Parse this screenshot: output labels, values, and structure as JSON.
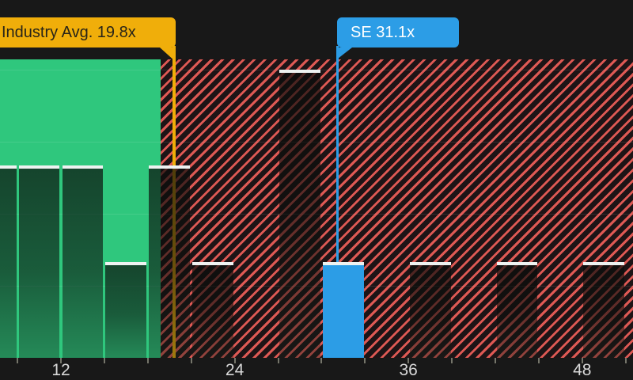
{
  "chart_data": {
    "type": "bar",
    "subtype": "histogram",
    "title": "",
    "xlabel": "",
    "ylabel": "",
    "x_range": [
      7.8,
      51.5
    ],
    "ylim": [
      0,
      3
    ],
    "bin_width": 3,
    "x_minor_ticks": [
      9,
      12,
      15,
      18,
      21,
      24,
      27,
      30,
      33,
      36,
      39,
      42,
      45,
      48,
      51
    ],
    "x_labeled_ticks": [
      12,
      24,
      36,
      48
    ],
    "x_tick_labels": [
      "12",
      "24",
      "36",
      "48"
    ],
    "grid": "horizontal-faint",
    "legend_position": "none",
    "bins": [
      {
        "x_start": 6,
        "x_end": 9,
        "count": 2,
        "clipped_left": true
      },
      {
        "x_start": 9,
        "x_end": 12,
        "count": 2
      },
      {
        "x_start": 12,
        "x_end": 15,
        "count": 2
      },
      {
        "x_start": 15,
        "x_end": 18,
        "count": 1
      },
      {
        "x_start": 18,
        "x_end": 21,
        "count": 2
      },
      {
        "x_start": 21,
        "x_end": 24,
        "count": 1
      },
      {
        "x_start": 24,
        "x_end": 27,
        "count": 0
      },
      {
        "x_start": 27,
        "x_end": 30,
        "count": 3
      },
      {
        "x_start": 30,
        "x_end": 33,
        "count": 1,
        "highlight": "company"
      },
      {
        "x_start": 33,
        "x_end": 36,
        "count": 0
      },
      {
        "x_start": 36,
        "x_end": 39,
        "count": 1
      },
      {
        "x_start": 39,
        "x_end": 42,
        "count": 0
      },
      {
        "x_start": 42,
        "x_end": 45,
        "count": 1
      },
      {
        "x_start": 45,
        "x_end": 48,
        "count": 0
      },
      {
        "x_start": 48,
        "x_end": 51,
        "count": 1
      }
    ],
    "markers": [
      {
        "name": "industry_average",
        "label": "Industry Avg. 19.8x",
        "value": 19.8,
        "color": "#F0AE0A"
      },
      {
        "name": "company_se",
        "label": "SE 31.1x",
        "value": 31.1,
        "color": "#2C9DE6"
      }
    ],
    "regions": [
      {
        "name": "below_industry_average",
        "style": "solid-green",
        "fill": "#2FC77D",
        "x_start": 7.8,
        "x_end": 18.9
      },
      {
        "name": "above_industry_average",
        "style": "hatched-red",
        "stripe_color": "#DE5954",
        "fill": "#1D1416",
        "x_start": 18.9,
        "x_end": 51.5
      }
    ]
  },
  "colors": {
    "background": "#181818",
    "bar_cap": "#EEF2F1",
    "company_blue": "#2C9DE6",
    "industry_yellow": "#F0AE0A",
    "hatch_red": "#DE5954",
    "range_green": "#2FC77D",
    "axis_label": "#D9D9D9"
  }
}
